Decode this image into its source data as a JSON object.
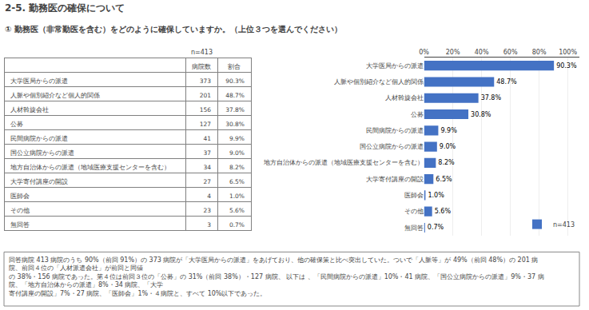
{
  "chart_data": [
    {
      "type": "table",
      "categories": [
        "大学医局からの派遣",
        "人脈や個別紹介など個人的関係",
        "人材斡旋会社",
        "公募",
        "民間病院からの派遣",
        "国公立病院からの派遣",
        "地方自治体からの派遣（地域医療支援センターを含む）",
        "大学寄付講座の開設",
        "医師会",
        "その他",
        "無回答"
      ],
      "series": [
        {
          "name": "病院数",
          "values": [
            373,
            201,
            156,
            127,
            41,
            37,
            34,
            27,
            4,
            23,
            3
          ]
        },
        {
          "name": "割合",
          "values": [
            90.3,
            48.7,
            37.8,
            30.8,
            9.9,
            9.0,
            8.2,
            6.5,
            1.0,
            5.6,
            0.7
          ],
          "value_labels": [
            "90.3%",
            "48.7%",
            "37.8%",
            "30.8%",
            "9.9%",
            "9.0%",
            "8.2%",
            "6.5%",
            "1.0%",
            "5.6%",
            "0.7%"
          ]
        }
      ],
      "annotations": [
        "n=413"
      ]
    },
    {
      "type": "bar",
      "title": "2-5. 勤務医の確保について",
      "subtitle": "① 勤務医（非常勤医を含む）をどのように確保していますか。（上位３つを選んでください）",
      "orientation": "horizontal",
      "categories": [
        "大学医局からの派遣",
        "人脈や個別紹介など個人的関係",
        "人材斡旋会社",
        "公募",
        "民間病院からの派遣",
        "国公立病院からの派遣",
        "地方自治体からの派遣（地域医療支援センターを含む）",
        "大学寄付講座の開設",
        "医師会",
        "その他",
        "無回答"
      ],
      "series": [
        {
          "name": "n=413",
          "color": "#4472C4",
          "values": [
            90.3,
            48.7,
            37.8,
            30.8,
            9.9,
            9.0,
            8.2,
            6.5,
            1.0,
            5.6,
            0.7
          ],
          "value_labels": [
            "90.3%",
            "48.7%",
            "37.8%",
            "30.8%",
            "9.9%",
            "9.0%",
            "8.2%",
            "6.5%",
            "1.0%",
            "5.6%",
            "0.7%"
          ]
        }
      ],
      "xlim": [
        0,
        108
      ],
      "xticks": [
        {
          "value": 0,
          "label": "0%"
        },
        {
          "value": 20,
          "label": "20%"
        },
        {
          "value": 40,
          "label": "40%"
        },
        {
          "value": 60,
          "label": "60%"
        },
        {
          "value": 80,
          "label": "80%"
        },
        {
          "value": 100,
          "label": "100%"
        }
      ],
      "grid": true,
      "legend": "lower right",
      "data_labels": true,
      "annotations": [
        "回答病院 413 病院のうち 90%（前回 91%）の 373 病院が「大学医局からの派遣」をあげており、他の確保策と比べ突出していた。ついで「人脈等」が 49%（前回 48%）の 201 病院、前回４位の「人材派遣会社」が前回と同値",
        "の 38%・156 病院であった。第４位は前回３位の「公募」の 31%（前回 38%）・127 病院、 以下は 、「民間病院からの派遣」10%・41 病院、「国公立病院からの派遣」9%・37 病院、「地方自治体からの派遣」8%・34 病院、「大学",
        "寄付講座の開設」7%・27 病院、「医師会」1%・４病院と、すべて 10%以下であった。"
      ]
    }
  ]
}
